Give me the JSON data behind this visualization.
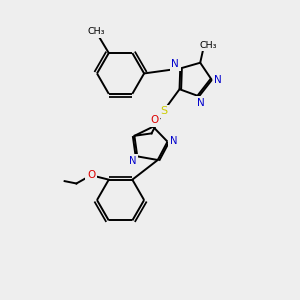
{
  "bg_color": "#eeeeee",
  "bond_color": "#000000",
  "atom_colors": {
    "N": "#0000cc",
    "O": "#dd0000",
    "S": "#cccc00",
    "C": "#000000"
  },
  "lw": 1.4,
  "doff": 0.055,
  "fs": 7.5
}
